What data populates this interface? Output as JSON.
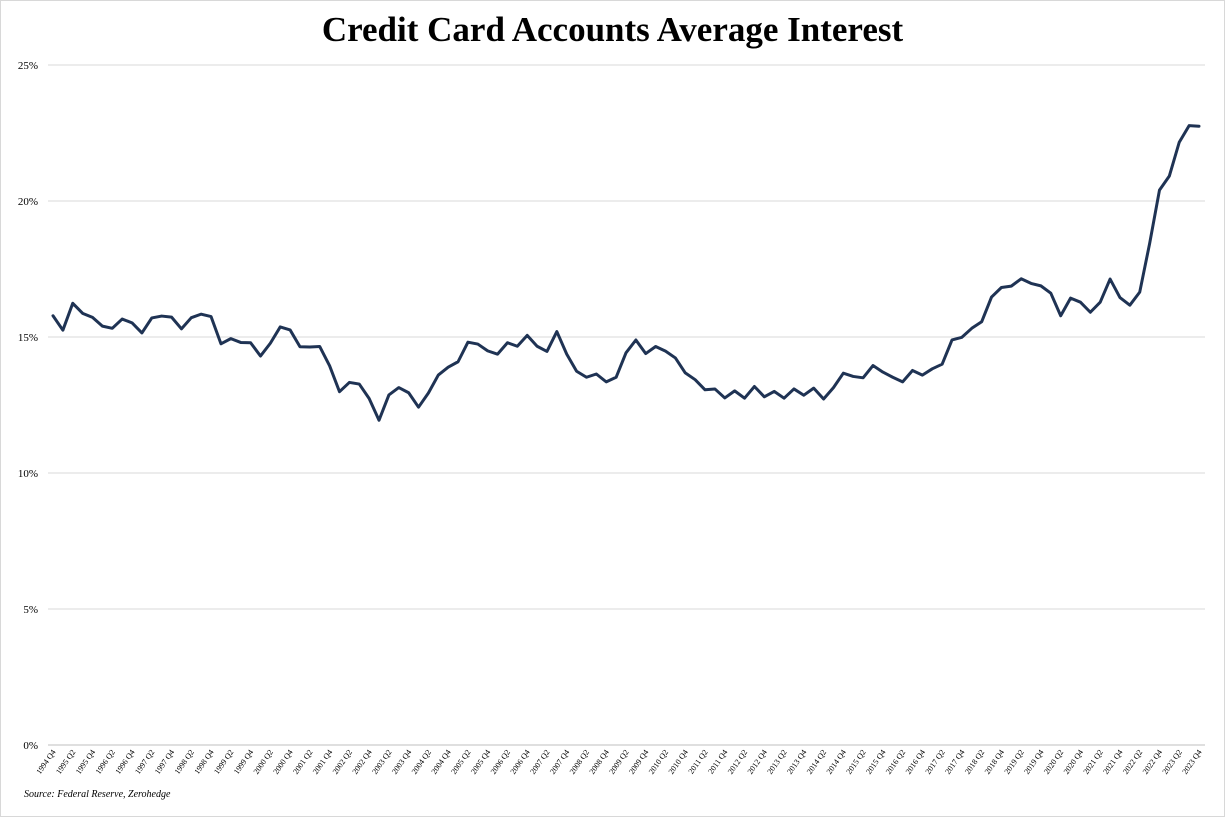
{
  "chart_data": {
    "type": "line",
    "title": "Credit Card Accounts Average Interest",
    "source": "Source: Federal Reserve, Zerohedge",
    "xlabel": "",
    "ylabel": "",
    "ylim": [
      0,
      25
    ],
    "yticks": [
      "0%",
      "5%",
      "10%",
      "15%",
      "20%",
      "25%"
    ],
    "grid": true,
    "legend": "none",
    "line_color": "#1f3354",
    "tick_labels": [
      "1994 Q4",
      "1995 Q2",
      "1995 Q4",
      "1996 Q2",
      "1996 Q4",
      "1997 Q2",
      "1997 Q4",
      "1998 Q2",
      "1998 Q4",
      "1999 Q2",
      "1999 Q4",
      "2000 Q2",
      "2000 Q4",
      "2001 Q2",
      "2001 Q4",
      "2002 Q2",
      "2002 Q4",
      "2003 Q2",
      "2003 Q4",
      "2004 Q2",
      "2004 Q4",
      "2005 Q2",
      "2005 Q4",
      "2006 Q2",
      "2006 Q4",
      "2007 Q2",
      "2007 Q4",
      "2008 Q2",
      "2008 Q4",
      "2009 Q2",
      "2009 Q4",
      "2010 Q2",
      "2010 Q4",
      "2011 Q2",
      "2011 Q4",
      "2012 Q2",
      "2012 Q4",
      "2013 Q2",
      "2013 Q4",
      "2014 Q2",
      "2014 Q4",
      "2015 Q2",
      "2015 Q4",
      "2016 Q2",
      "2016 Q4",
      "2017 Q2",
      "2017 Q4",
      "2018 Q2",
      "2018 Q4",
      "2019 Q2",
      "2019 Q4",
      "2020 Q2",
      "2020 Q4",
      "2021 Q2",
      "2021 Q4",
      "2022 Q2",
      "2022 Q4",
      "2023 Q2",
      "2023 Q4"
    ],
    "series": [
      {
        "values": [
          15.78,
          15.25,
          16.24,
          15.87,
          15.72,
          15.4,
          15.32,
          15.66,
          15.52,
          15.15,
          15.7,
          15.77,
          15.73,
          15.3,
          15.71,
          15.84,
          15.75,
          14.75,
          14.94,
          14.8,
          14.79,
          14.3,
          14.77,
          15.37,
          15.26,
          14.64,
          14.63,
          14.65,
          13.94,
          12.99,
          13.33,
          13.27,
          12.74,
          11.94,
          12.87,
          13.14,
          12.95,
          12.42,
          12.94,
          13.6,
          13.89,
          14.09,
          14.81,
          14.74,
          14.49,
          14.37,
          14.79,
          14.66,
          15.06,
          14.66,
          14.47,
          15.2,
          14.37,
          13.74,
          13.52,
          13.64,
          13.35,
          13.52,
          14.42,
          14.89,
          14.39,
          14.65,
          14.48,
          14.23,
          13.68,
          13.43,
          13.06,
          13.09,
          12.76,
          13.02,
          12.75,
          13.18,
          12.8,
          13.0,
          12.75,
          13.09,
          12.86,
          13.12,
          12.72,
          13.14,
          13.67,
          13.55,
          13.5,
          13.95,
          13.71,
          13.52,
          13.35,
          13.77,
          13.6,
          13.83,
          14.0,
          14.89,
          14.99,
          15.32,
          15.56,
          16.47,
          16.82,
          16.87,
          17.14,
          16.97,
          16.88,
          16.61,
          15.78,
          16.43,
          16.28,
          15.91,
          16.28,
          17.13,
          16.45,
          16.17,
          16.65,
          18.43,
          20.4,
          20.92,
          22.16,
          22.77,
          22.75
        ]
      }
    ]
  }
}
